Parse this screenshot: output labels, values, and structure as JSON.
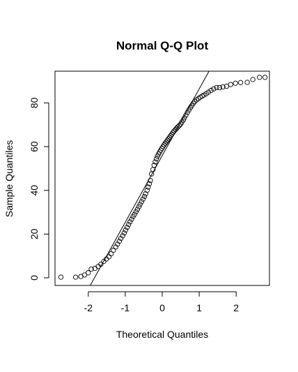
{
  "chart_data": {
    "type": "scatter",
    "title": "Normal Q-Q Plot",
    "xlabel": "Theoretical Quantiles",
    "ylabel": "Sample Quantiles",
    "xlim": [
      -2.9,
      2.9
    ],
    "ylim": [
      -3.5,
      94.5
    ],
    "x_ticks": [
      -2,
      -1,
      0,
      1,
      2
    ],
    "y_ticks": [
      0,
      20,
      40,
      60,
      80
    ],
    "x_tick_labels": [
      "-2",
      "-1",
      "0",
      "1",
      "2"
    ],
    "y_tick_labels": [
      "0",
      "20",
      "40",
      "60",
      "80"
    ],
    "grid": false,
    "reference_line": {
      "intercept": 55.9,
      "slope": 30.5
    },
    "series": [
      {
        "marker": "open-circle",
        "points": [
          [
            -2.74,
            0.3
          ],
          [
            -2.34,
            0.3
          ],
          [
            -2.2,
            0.6
          ],
          [
            -2.1,
            1.3
          ],
          [
            -2.0,
            2.3
          ],
          [
            -1.92,
            4.0
          ],
          [
            -1.82,
            4.3
          ],
          [
            -1.73,
            5.2
          ],
          [
            -1.66,
            6.2
          ],
          [
            -1.58,
            7.5
          ],
          [
            -1.51,
            8.6
          ],
          [
            -1.44,
            9.6
          ],
          [
            -1.38,
            11.0
          ],
          [
            -1.32,
            12.6
          ],
          [
            -1.26,
            14.1
          ],
          [
            -1.21,
            15.4
          ],
          [
            -1.16,
            16.7
          ],
          [
            -1.12,
            18.0
          ],
          [
            -1.07,
            19.2
          ],
          [
            -1.03,
            20.5
          ],
          [
            -0.99,
            21.8
          ],
          [
            -0.95,
            23.1
          ],
          [
            -0.91,
            24.4
          ],
          [
            -0.87,
            25.6
          ],
          [
            -0.83,
            26.8
          ],
          [
            -0.79,
            28.0
          ],
          [
            -0.75,
            29.0
          ],
          [
            -0.71,
            30.2
          ],
          [
            -0.67,
            31.3
          ],
          [
            -0.63,
            32.5
          ],
          [
            -0.6,
            33.6
          ],
          [
            -0.56,
            34.8
          ],
          [
            -0.52,
            36.0
          ],
          [
            -0.48,
            37.2
          ],
          [
            -0.45,
            38.4
          ],
          [
            -0.41,
            40.0
          ],
          [
            -0.38,
            41.5
          ],
          [
            -0.35,
            43.0
          ],
          [
            -0.32,
            44.5
          ],
          [
            -0.29,
            47.5
          ],
          [
            -0.25,
            49.5
          ],
          [
            -0.22,
            51.5
          ],
          [
            -0.19,
            53.0
          ],
          [
            -0.16,
            54.4
          ],
          [
            -0.13,
            55.6
          ],
          [
            -0.1,
            56.6
          ],
          [
            -0.07,
            57.5
          ],
          [
            -0.04,
            58.4
          ],
          [
            -0.01,
            59.2
          ],
          [
            0.02,
            60.0
          ],
          [
            0.05,
            60.8
          ],
          [
            0.08,
            61.5
          ],
          [
            0.11,
            62.2
          ],
          [
            0.14,
            62.9
          ],
          [
            0.17,
            63.6
          ],
          [
            0.2,
            64.3
          ],
          [
            0.23,
            65.0
          ],
          [
            0.26,
            65.7
          ],
          [
            0.29,
            66.4
          ],
          [
            0.32,
            67.1
          ],
          [
            0.36,
            67.8
          ],
          [
            0.39,
            68.4
          ],
          [
            0.42,
            69.0
          ],
          [
            0.46,
            69.6
          ],
          [
            0.5,
            70.3
          ],
          [
            0.53,
            71.2
          ],
          [
            0.57,
            72.2
          ],
          [
            0.6,
            73.2
          ],
          [
            0.64,
            74.4
          ],
          [
            0.68,
            75.6
          ],
          [
            0.72,
            76.7
          ],
          [
            0.76,
            77.8
          ],
          [
            0.8,
            78.8
          ],
          [
            0.84,
            79.8
          ],
          [
            0.88,
            80.6
          ],
          [
            0.93,
            81.4
          ],
          [
            0.98,
            82.0
          ],
          [
            1.03,
            82.6
          ],
          [
            1.08,
            83.1
          ],
          [
            1.13,
            83.6
          ],
          [
            1.19,
            84.2
          ],
          [
            1.25,
            84.9
          ],
          [
            1.32,
            85.7
          ],
          [
            1.39,
            86.4
          ],
          [
            1.47,
            87.0
          ],
          [
            1.55,
            87.0
          ],
          [
            1.64,
            87.3
          ],
          [
            1.74,
            87.6
          ],
          [
            1.85,
            88.4
          ],
          [
            1.98,
            89.0
          ],
          [
            2.12,
            89.3
          ],
          [
            2.3,
            89.4
          ],
          [
            2.45,
            90.7
          ],
          [
            2.63,
            91.7
          ],
          [
            2.78,
            91.7
          ]
        ]
      }
    ]
  }
}
